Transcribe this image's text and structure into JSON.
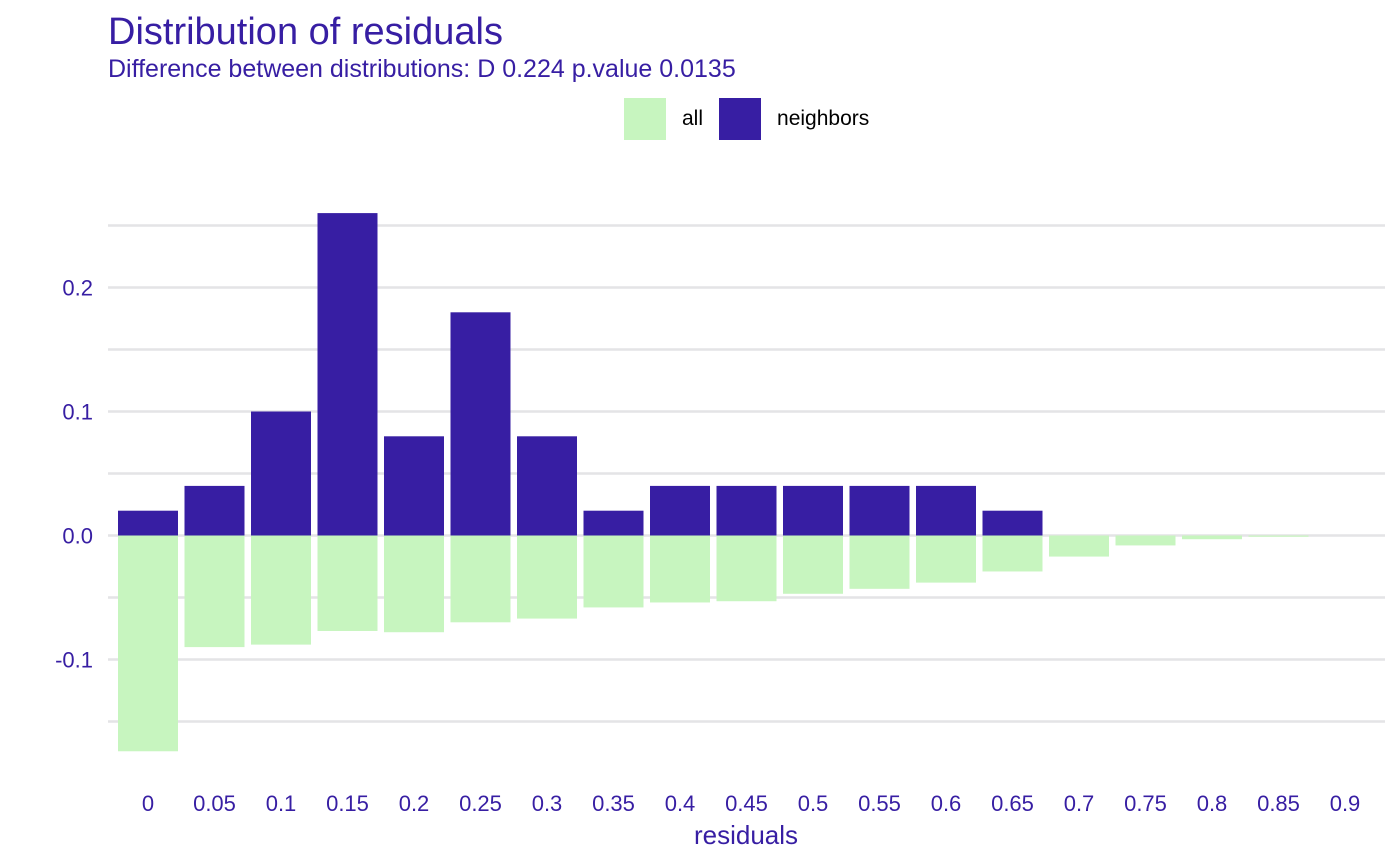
{
  "chart_data": {
    "type": "bar",
    "title": "Distribution of residuals",
    "subtitle": "Difference between distributions: D 0.224 p.value 0.0135",
    "xlabel": "residuals",
    "ylabel": "",
    "categories": [
      "0",
      "0.05",
      "0.1",
      "0.15",
      "0.2",
      "0.25",
      "0.3",
      "0.35",
      "0.4",
      "0.45",
      "0.5",
      "0.55",
      "0.6",
      "0.65",
      "0.7",
      "0.75",
      "0.8",
      "0.85",
      "0.9"
    ],
    "series": [
      {
        "name": "all",
        "color": "#c7f5bf",
        "values": [
          -0.174,
          -0.09,
          -0.088,
          -0.077,
          -0.078,
          -0.07,
          -0.067,
          -0.058,
          -0.054,
          -0.053,
          -0.047,
          -0.043,
          -0.038,
          -0.029,
          -0.017,
          -0.008,
          -0.003,
          -0.001,
          0
        ]
      },
      {
        "name": "neighbors",
        "color": "#371ea3",
        "values": [
          0.02,
          0.04,
          0.1,
          0.26,
          0.08,
          0.18,
          0.08,
          0.02,
          0.04,
          0.04,
          0.04,
          0.04,
          0.04,
          0.02,
          0,
          0,
          0,
          0,
          0
        ]
      }
    ],
    "yticks": [
      -0.1,
      0.0,
      0.1,
      0.2
    ],
    "ytick_labels": [
      "-0.1",
      "0.0",
      "0.1",
      "0.2"
    ],
    "ylim": [
      -0.185,
      0.27
    ],
    "grid": true,
    "legend_position": "top"
  }
}
